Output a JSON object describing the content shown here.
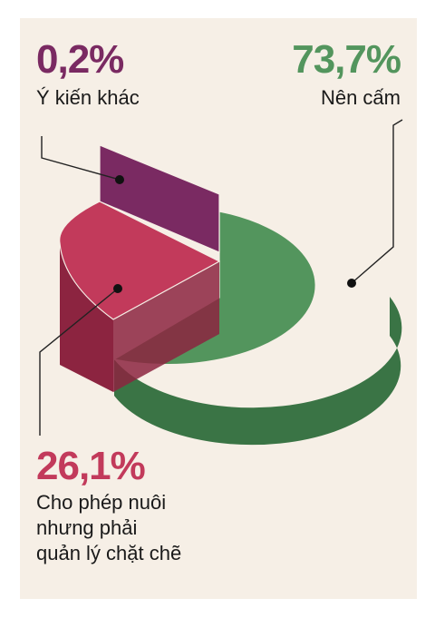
{
  "colors": {
    "background": "#f6efe6",
    "other": "#7a2a62",
    "other_side": "#5c1d49",
    "allow": "#c23a5b",
    "allow_side": "#8c2440",
    "ban": "#53955d",
    "ban_side": "#3a7445"
  },
  "chart_data": {
    "type": "pie",
    "style": "3d-exploded",
    "slices": [
      {
        "key": "ban",
        "value": 73.7,
        "value_label": "73,7%",
        "label": "Nên cấm"
      },
      {
        "key": "allow",
        "value": 26.1,
        "value_label": "26,1%",
        "label_lines": [
          "Cho phép nuôi",
          "nhưng phải",
          "quản lý chặt chẽ"
        ]
      },
      {
        "key": "other",
        "value": 0.2,
        "value_label": "0,2%",
        "label": "Ý kiến khác"
      }
    ]
  }
}
